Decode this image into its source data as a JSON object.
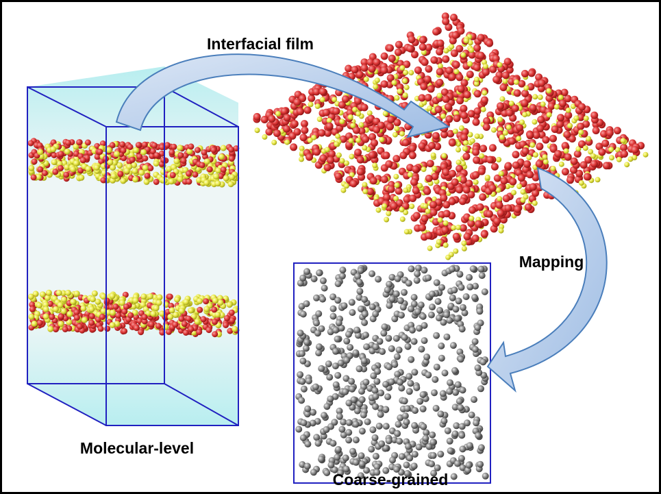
{
  "labels": {
    "film": "Interfacial film",
    "molecular": "Molecular-level",
    "mapping": "Mapping",
    "coarse": "Coarse-grained"
  }
}
